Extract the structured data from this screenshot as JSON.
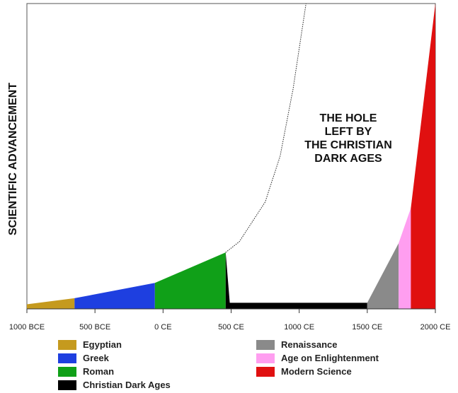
{
  "chart_data": {
    "type": "area",
    "ylabel": "SCIENTIFIC ADVANCEMENT",
    "xlabel": "",
    "xlim": [
      -1000,
      2000
    ],
    "ylim": [
      0,
      100
    ],
    "x_ticks": [
      -1000,
      -500,
      0,
      500,
      1000,
      1500,
      2000
    ],
    "x_tick_labels": [
      "1000 BCE",
      "500 BCE",
      "0 CE",
      "500 CE",
      "1000 CE",
      "1500 CE",
      "2000 CE"
    ],
    "annotation": [
      "THE HOLE",
      "LEFT BY",
      "THE CHRISTIAN",
      "DARK AGES"
    ],
    "series": [
      {
        "name": "Egyptian",
        "color": "#c59a1e",
        "points": [
          [
            -1000,
            1.5
          ],
          [
            -650,
            3.5
          ]
        ]
      },
      {
        "name": "Greek",
        "color": "#1e3fe0",
        "points": [
          [
            -650,
            3.5
          ],
          [
            -60,
            8.5
          ]
        ]
      },
      {
        "name": "Roman",
        "color": "#10a018",
        "points": [
          [
            -60,
            8.5
          ],
          [
            460,
            18.5
          ]
        ]
      },
      {
        "name": "Christian Dark Ages",
        "color": "#000000",
        "points": [
          [
            460,
            18.5
          ],
          [
            490,
            2
          ],
          [
            1500,
            2
          ]
        ]
      },
      {
        "name": "Renaissance",
        "color": "#8a8a8a",
        "points": [
          [
            1500,
            2
          ],
          [
            1730,
            21.5
          ]
        ]
      },
      {
        "name": "Age on Enlightenment",
        "color": "#ff9ef0",
        "points": [
          [
            1730,
            21.5
          ],
          [
            1820,
            33
          ]
        ]
      },
      {
        "name": "Modern Science",
        "color": "#e01010",
        "points": [
          [
            1820,
            33
          ],
          [
            2000,
            100
          ]
        ]
      }
    ],
    "projection_line": {
      "style": "dotted",
      "points": [
        [
          460,
          18.5
        ],
        [
          560,
          22
        ],
        [
          750,
          35
        ],
        [
          860,
          50
        ],
        [
          955,
          72
        ],
        [
          1050,
          100
        ]
      ]
    },
    "legend_placement": "bottom",
    "legend": [
      {
        "label": "Egyptian",
        "color": "#c59a1e"
      },
      {
        "label": "Greek",
        "color": "#1e3fe0"
      },
      {
        "label": "Roman",
        "color": "#10a018"
      },
      {
        "label": "Christian Dark Ages",
        "color": "#000000"
      },
      {
        "label": "Renaissance",
        "color": "#8a8a8a"
      },
      {
        "label": "Age on Enlightenment",
        "color": "#ff9ef0"
      },
      {
        "label": "Modern Science",
        "color": "#e01010"
      }
    ],
    "grid": false
  }
}
